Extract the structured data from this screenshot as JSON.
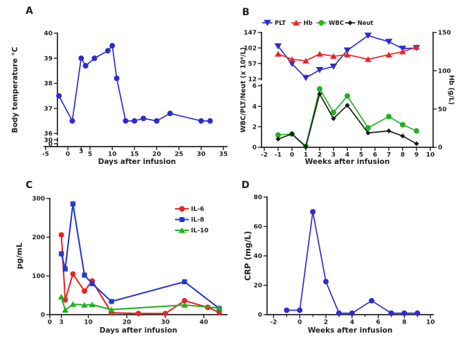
{
  "figure": {
    "background": "#ffffff",
    "text_color": "#231f20",
    "accent_blue": "#2c2cd0",
    "accent_red": "#e92528",
    "accent_green": "#21b121",
    "accent_black": "#1b1b1b"
  },
  "chart_data": [
    {
      "id": "A",
      "type": "line",
      "title": "",
      "xlabel": "Days after infusion",
      "ylabel": "Body temperature °C",
      "x_range": [
        -5.3,
        35.8
      ],
      "x_ticks": [
        -5,
        0,
        3,
        5,
        10,
        15,
        20,
        25,
        30,
        35
      ],
      "y_axis": {
        "ticks": [
          40,
          39,
          38,
          37,
          36,
          30,
          0
        ],
        "segments": [
          {
            "v": [
              40,
              36
            ],
            "f": [
              0,
              0.884
            ]
          },
          {
            "v": [
              30,
              30
            ],
            "f": [
              0.94,
              0.94
            ]
          },
          {
            "v": [
              0,
              0
            ],
            "f": [
              0.975,
              0.975
            ]
          }
        ]
      },
      "series": [
        {
          "name": "Body temperature",
          "color": "#2c2cd0",
          "marker": "circle",
          "axis": "left",
          "x": [
            -2,
            1,
            3,
            4,
            6,
            9,
            10,
            11,
            13,
            15,
            17,
            20,
            23,
            30,
            32
          ],
          "y": [
            37.5,
            36.5,
            39.0,
            38.7,
            39.0,
            39.3,
            39.5,
            38.2,
            36.5,
            36.5,
            36.6,
            36.5,
            36.8,
            36.5,
            36.5
          ]
        }
      ]
    },
    {
      "id": "B",
      "type": "line",
      "title": "",
      "xlabel": "Weeks after infusion",
      "ylabel": "WBC/PLT/Neut (x 10⁹/L)",
      "x_range": [
        -2.2,
        10.2
      ],
      "x_ticks": [
        -2,
        -1,
        0,
        1,
        2,
        3,
        4,
        5,
        6,
        7,
        8,
        9,
        10
      ],
      "y_axis": {
        "ticks": [
          147,
          102,
          57,
          12,
          6,
          4,
          2,
          0
        ],
        "segments": [
          {
            "v": [
              147,
              12
            ],
            "f": [
              0,
              0.404
            ]
          },
          {
            "v": [
              6,
              0
            ],
            "f": [
              0.464,
              1
            ]
          }
        ]
      },
      "y_axis_right": {
        "label": "Hb (g/L)",
        "ticks": [
          150,
          100,
          50,
          0
        ],
        "segments": [
          {
            "v": [
              150,
              0
            ],
            "f": [
              0,
              1
            ]
          }
        ]
      },
      "legend": {
        "position": "top"
      },
      "series": [
        {
          "name": "PLT",
          "color": "#2c2cd0",
          "marker": "triangle-down",
          "axis": "left",
          "x": [
            -1,
            0,
            1,
            2,
            3,
            4,
            5.5,
            7,
            8,
            9
          ],
          "y": [
            107,
            56,
            15,
            38,
            48,
            95,
            138,
            120,
            100,
            102
          ]
        },
        {
          "name": "Hb",
          "color": "#e92528",
          "marker": "triangle-up",
          "axis": "right",
          "x": [
            -1,
            0,
            1,
            2,
            3,
            4,
            5.5,
            7,
            8,
            9
          ],
          "y": [
            122,
            115,
            113,
            122,
            119,
            121,
            115,
            121,
            125,
            131
          ]
        },
        {
          "name": "WBC",
          "color": "#21b121",
          "marker": "circle",
          "axis": "left",
          "x": [
            -1,
            0,
            1,
            2,
            3,
            4,
            5.5,
            7,
            8,
            9
          ],
          "y": [
            1.2,
            1.3,
            0.1,
            5.7,
            3.4,
            5.0,
            1.9,
            3.0,
            2.2,
            1.6
          ]
        },
        {
          "name": "Neut",
          "color": "#1b1b1b",
          "marker": "diamond",
          "axis": "left",
          "x": [
            -1,
            0,
            1,
            2,
            3,
            4,
            5.5,
            7,
            8,
            9
          ],
          "y": [
            0.8,
            1.3,
            0.05,
            5.2,
            2.8,
            4.1,
            1.4,
            1.6,
            1.1,
            0.35
          ]
        }
      ]
    },
    {
      "id": "C",
      "type": "line",
      "title": "",
      "xlabel": "Days after infusion",
      "ylabel": "pg/mL",
      "x_range": [
        0,
        46
      ],
      "x_ticks": [
        0,
        3,
        10,
        20,
        30,
        40
      ],
      "y_axis": {
        "ticks": [
          300,
          200,
          100,
          0
        ],
        "segments": [
          {
            "v": [
              300,
              0
            ],
            "f": [
              0,
              1
            ]
          }
        ]
      },
      "legend": {
        "position": "inside-right"
      },
      "series": [
        {
          "name": "IL-6",
          "color": "#e92528",
          "marker": "circle",
          "axis": "left",
          "x": [
            3,
            4,
            6,
            9,
            11,
            16,
            23,
            30,
            35,
            41,
            44
          ],
          "y": [
            206,
            38,
            105,
            61,
            87,
            5,
            3,
            3,
            36,
            19,
            6
          ]
        },
        {
          "name": "IL-8",
          "color": "#2438cc",
          "marker": "square",
          "axis": "left",
          "x": [
            3,
            4,
            6,
            9,
            11,
            16,
            35,
            44
          ],
          "y": [
            157,
            118,
            286,
            102,
            80,
            34,
            85,
            16
          ]
        },
        {
          "name": "IL-10",
          "color": "#21b121",
          "marker": "triangle-up",
          "axis": "left",
          "x": [
            3,
            4,
            6,
            9,
            11,
            16,
            35,
            44
          ],
          "y": [
            46,
            12,
            27,
            25,
            26,
            13,
            25,
            17
          ]
        }
      ]
    },
    {
      "id": "D",
      "type": "line",
      "title": "",
      "xlabel": "Weeks after infusion",
      "ylabel": "CRP (mg/L)",
      "x_range": [
        -2.5,
        10.2
      ],
      "x_ticks": [
        -2,
        0,
        2,
        4,
        6,
        8,
        10
      ],
      "x_minor_ticks": [
        -1,
        1,
        3,
        5,
        7,
        9
      ],
      "y_axis": {
        "ticks": [
          80,
          60,
          40,
          20,
          0
        ],
        "segments": [
          {
            "v": [
              80,
              0
            ],
            "f": [
              0,
              1
            ]
          }
        ]
      },
      "series": [
        {
          "name": "CRP",
          "color": "#2c2cd0",
          "marker": "circle",
          "axis": "left",
          "x": [
            -1,
            0,
            1,
            2,
            3,
            4,
            5.5,
            7,
            8,
            9
          ],
          "y": [
            3,
            3,
            70,
            22.5,
            1,
            1,
            9.5,
            1,
            1,
            1
          ]
        }
      ]
    }
  ]
}
